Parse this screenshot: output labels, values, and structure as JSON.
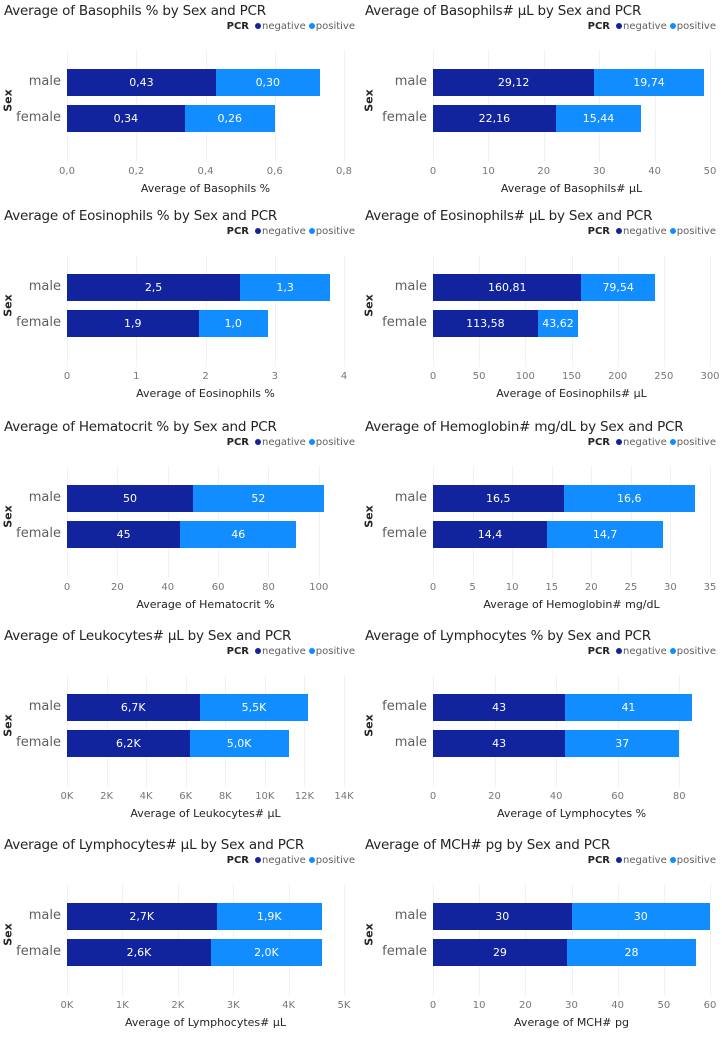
{
  "legend": {
    "title": "PCR",
    "negative": "negative",
    "positive": "positive"
  },
  "colors": {
    "negative": "#12239E",
    "positive": "#118DFF"
  },
  "y_axis_label": "Sex",
  "chart_data": [
    {
      "type": "bar",
      "title": "Average of Basophils % by Sex and PCR",
      "xlabel": "Average of Basophils %",
      "ylabel": "Sex",
      "categories": [
        "male",
        "female"
      ],
      "series": [
        {
          "name": "negative",
          "values": [
            0.43,
            0.34
          ],
          "labels": [
            "0,43",
            "0,34"
          ]
        },
        {
          "name": "positive",
          "values": [
            0.3,
            0.26
          ],
          "labels": [
            "0,30",
            "0,26"
          ]
        }
      ],
      "ticks": [
        0,
        0.2,
        0.4,
        0.6,
        0.8
      ],
      "tick_labels": [
        "0,0",
        "0,2",
        "0,4",
        "0,6",
        "0,8"
      ],
      "xlim": [
        0,
        0.8
      ]
    },
    {
      "type": "bar",
      "title": "Average of Basophils# µL by Sex and PCR",
      "xlabel": "Average of Basophils# µL",
      "ylabel": "Sex",
      "categories": [
        "male",
        "female"
      ],
      "series": [
        {
          "name": "negative",
          "values": [
            29.12,
            22.16
          ],
          "labels": [
            "29,12",
            "22,16"
          ]
        },
        {
          "name": "positive",
          "values": [
            19.74,
            15.44
          ],
          "labels": [
            "19,74",
            "15,44"
          ]
        }
      ],
      "ticks": [
        0,
        10,
        20,
        30,
        40,
        50
      ],
      "tick_labels": [
        "0",
        "10",
        "20",
        "30",
        "40",
        "50"
      ],
      "xlim": [
        0,
        50
      ]
    },
    {
      "type": "bar",
      "title": "Average of Eosinophils % by Sex and PCR",
      "xlabel": "Average of Eosinophils %",
      "ylabel": "Sex",
      "categories": [
        "male",
        "female"
      ],
      "series": [
        {
          "name": "negative",
          "values": [
            2.5,
            1.9
          ],
          "labels": [
            "2,5",
            "1,9"
          ]
        },
        {
          "name": "positive",
          "values": [
            1.3,
            1.0
          ],
          "labels": [
            "1,3",
            "1,0"
          ]
        }
      ],
      "ticks": [
        0,
        1,
        2,
        3,
        4
      ],
      "tick_labels": [
        "0",
        "1",
        "2",
        "3",
        "4"
      ],
      "xlim": [
        0,
        4
      ]
    },
    {
      "type": "bar",
      "title": "Average of Eosinophils# µL by Sex and PCR",
      "xlabel": "Average of Eosinophils# µL",
      "ylabel": "Sex",
      "categories": [
        "male",
        "female"
      ],
      "series": [
        {
          "name": "negative",
          "values": [
            160.81,
            113.58
          ],
          "labels": [
            "160,81",
            "113,58"
          ]
        },
        {
          "name": "positive",
          "values": [
            79.54,
            43.62
          ],
          "labels": [
            "79,54",
            "43,62"
          ]
        }
      ],
      "ticks": [
        0,
        50,
        100,
        150,
        200,
        250,
        300
      ],
      "tick_labels": [
        "0",
        "50",
        "100",
        "150",
        "200",
        "250",
        "300"
      ],
      "xlim": [
        0,
        300
      ]
    },
    {
      "type": "bar",
      "title": "Average of Hematocrit % by Sex and PCR",
      "xlabel": "Average of Hematocrit %",
      "ylabel": "Sex",
      "categories": [
        "male",
        "female"
      ],
      "series": [
        {
          "name": "negative",
          "values": [
            50,
            45
          ],
          "labels": [
            "50",
            "45"
          ]
        },
        {
          "name": "positive",
          "values": [
            52,
            46
          ],
          "labels": [
            "52",
            "46"
          ]
        }
      ],
      "ticks": [
        0,
        20,
        40,
        60,
        80,
        100
      ],
      "tick_labels": [
        "0",
        "20",
        "40",
        "60",
        "80",
        "100"
      ],
      "xlim": [
        0,
        110
      ]
    },
    {
      "type": "bar",
      "title": "Average of Hemoglobin# mg/dL by Sex and PCR",
      "xlabel": "Average of Hemoglobin# mg/dL",
      "ylabel": "Sex",
      "categories": [
        "male",
        "female"
      ],
      "series": [
        {
          "name": "negative",
          "values": [
            16.5,
            14.4
          ],
          "labels": [
            "16,5",
            "14,4"
          ]
        },
        {
          "name": "positive",
          "values": [
            16.6,
            14.7
          ],
          "labels": [
            "16,6",
            "14,7"
          ]
        }
      ],
      "ticks": [
        0,
        5,
        10,
        15,
        20,
        25,
        30,
        35
      ],
      "tick_labels": [
        "0",
        "5",
        "10",
        "15",
        "20",
        "25",
        "30",
        "35"
      ],
      "xlim": [
        0,
        35
      ]
    },
    {
      "type": "bar",
      "title": "Average of Leukocytes# µL by Sex and PCR",
      "xlabel": "Average of Leukocytes# µL",
      "ylabel": "Sex",
      "categories": [
        "male",
        "female"
      ],
      "series": [
        {
          "name": "negative",
          "values": [
            6700,
            6200
          ],
          "labels": [
            "6,7K",
            "6,2K"
          ]
        },
        {
          "name": "positive",
          "values": [
            5500,
            5000
          ],
          "labels": [
            "5,5K",
            "5,0K"
          ]
        }
      ],
      "ticks": [
        0,
        2000,
        4000,
        6000,
        8000,
        10000,
        12000,
        14000
      ],
      "tick_labels": [
        "0K",
        "2K",
        "4K",
        "6K",
        "8K",
        "10K",
        "12K",
        "14K"
      ],
      "xlim": [
        0,
        14000
      ]
    },
    {
      "type": "bar",
      "title": "Average of Lymphocytes % by Sex and PCR",
      "xlabel": "Average of Lymphocytes %",
      "ylabel": "Sex",
      "categories": [
        "female",
        "male"
      ],
      "series": [
        {
          "name": "negative",
          "values": [
            43,
            43
          ],
          "labels": [
            "43",
            "43"
          ]
        },
        {
          "name": "positive",
          "values": [
            41,
            37
          ],
          "labels": [
            "41",
            "37"
          ]
        }
      ],
      "ticks": [
        0,
        20,
        40,
        60,
        80
      ],
      "tick_labels": [
        "0",
        "20",
        "40",
        "60",
        "80"
      ],
      "xlim": [
        0,
        90
      ]
    },
    {
      "type": "bar",
      "title": "Average of Lymphocytes# µL by Sex and PCR",
      "xlabel": "Average of Lymphocytes# µL",
      "ylabel": "Sex",
      "categories": [
        "male",
        "female"
      ],
      "series": [
        {
          "name": "negative",
          "values": [
            2700,
            2600
          ],
          "labels": [
            "2,7K",
            "2,6K"
          ]
        },
        {
          "name": "positive",
          "values": [
            1900,
            2000
          ],
          "labels": [
            "1,9K",
            "2,0K"
          ]
        }
      ],
      "ticks": [
        0,
        1000,
        2000,
        3000,
        4000,
        5000
      ],
      "tick_labels": [
        "0K",
        "1K",
        "2K",
        "3K",
        "4K",
        "5K"
      ],
      "xlim": [
        0,
        5000
      ]
    },
    {
      "type": "bar",
      "title": "Average of MCH# pg by Sex and PCR",
      "xlabel": "Average of MCH# pg",
      "ylabel": "Sex",
      "categories": [
        "male",
        "female"
      ],
      "series": [
        {
          "name": "negative",
          "values": [
            30,
            29
          ],
          "labels": [
            "30",
            "29"
          ]
        },
        {
          "name": "positive",
          "values": [
            30,
            28
          ],
          "labels": [
            "30",
            "28"
          ]
        }
      ],
      "ticks": [
        0,
        10,
        20,
        30,
        40,
        50,
        60
      ],
      "tick_labels": [
        "0",
        "10",
        "20",
        "30",
        "40",
        "50",
        "60"
      ],
      "xlim": [
        0,
        60
      ]
    }
  ]
}
